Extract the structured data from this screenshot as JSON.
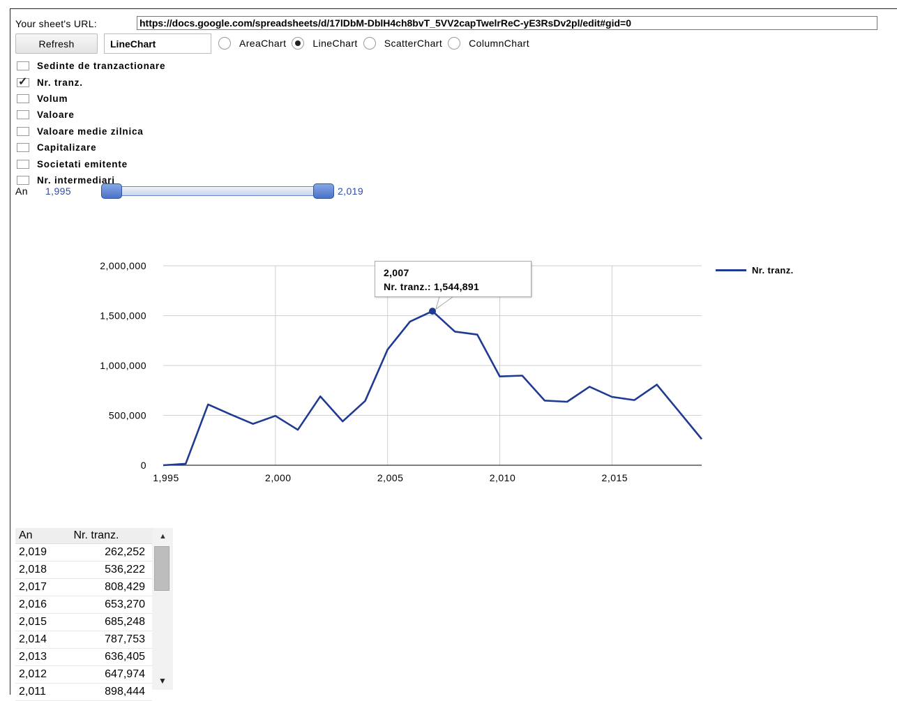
{
  "controls": {
    "url_label": "Your sheet's URL:",
    "url_value": "https://docs.google.com/spreadsheets/d/17lDbM-DblH4ch8bvT_5VV2capTwelrReC-yE3RsDv2pl/edit#gid=0",
    "refresh_label": "Refresh",
    "chart_type_value": "LineChart",
    "radio_options": [
      {
        "label": "AreaChart",
        "selected": false
      },
      {
        "label": "LineChart",
        "selected": true
      },
      {
        "label": "ScatterChart",
        "selected": false
      },
      {
        "label": "ColumnChart",
        "selected": false
      }
    ],
    "checkboxes": [
      {
        "label": "Sedinte de tranzactionare",
        "checked": false
      },
      {
        "label": "Nr. tranz.",
        "checked": true
      },
      {
        "label": "Volum",
        "checked": false
      },
      {
        "label": "Valoare",
        "checked": false
      },
      {
        "label": "Valoare medie zilnica",
        "checked": false
      },
      {
        "label": "Capitalizare",
        "checked": false
      },
      {
        "label": "Societati emitente",
        "checked": false
      },
      {
        "label": "Nr. intermediari",
        "checked": false
      }
    ],
    "range_label": "An",
    "range_min": "1,995",
    "range_max": "2,019"
  },
  "chart_data": {
    "type": "line",
    "x": [
      1995,
      1996,
      1997,
      1998,
      1999,
      2000,
      2001,
      2002,
      2003,
      2004,
      2005,
      2006,
      2007,
      2008,
      2009,
      2010,
      2011,
      2012,
      2013,
      2014,
      2015,
      2016,
      2017,
      2018,
      2019
    ],
    "series": [
      {
        "name": "Nr. tranz.",
        "values": [
          0,
          15000,
          610000,
          510000,
          415000,
          495000,
          355000,
          690000,
          440000,
          645000,
          1160000,
          1440000,
          1544891,
          1340000,
          1310000,
          890000,
          898444,
          647974,
          636405,
          787753,
          685248,
          653270,
          808429,
          536222,
          262252
        ]
      }
    ],
    "xlim": [
      1995,
      2019
    ],
    "ylim": [
      0,
      2000000
    ],
    "x_ticks": [
      1995,
      2000,
      2005,
      2010,
      2015
    ],
    "x_tick_labels": [
      "1,995",
      "2,000",
      "2,005",
      "2,010",
      "2,015"
    ],
    "y_ticks": [
      0,
      500000,
      1000000,
      1500000,
      2000000
    ],
    "y_tick_labels": [
      "0",
      "500,000",
      "1,000,000",
      "1,500,000",
      "2,000,000"
    ],
    "grid": true,
    "legend": "right",
    "line_color": "#1f3a93",
    "tooltip": {
      "x_label": "2,007",
      "text": "Nr. tranz.: 1,544,891",
      "x": 2007
    }
  },
  "table": {
    "headers": [
      "An",
      "Nr. tranz."
    ],
    "rows": [
      [
        "2,019",
        "262,252"
      ],
      [
        "2,018",
        "536,222"
      ],
      [
        "2,017",
        "808,429"
      ],
      [
        "2,016",
        "653,270"
      ],
      [
        "2,015",
        "685,248"
      ],
      [
        "2,014",
        "787,753"
      ],
      [
        "2,013",
        "636,405"
      ],
      [
        "2,012",
        "647,974"
      ],
      [
        "2,011",
        "898,444"
      ]
    ]
  }
}
